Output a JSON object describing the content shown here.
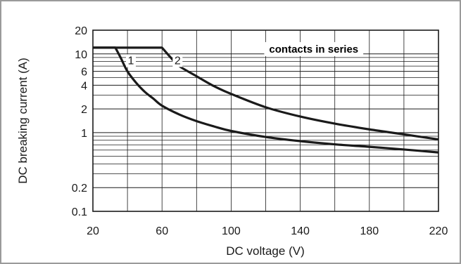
{
  "chart_data": {
    "type": "line",
    "title": "",
    "xlabel": "DC voltage (V)",
    "ylabel": "DC breaking current (A)",
    "x_scale": "linear",
    "y_scale": "log",
    "xlim": [
      20,
      220
    ],
    "ylim": [
      0.1,
      20
    ],
    "x_ticks": [
      20,
      60,
      100,
      140,
      180,
      220
    ],
    "x_tick_labels": [
      "20",
      "60",
      "100",
      "140",
      "180",
      "220"
    ],
    "y_ticks": [
      0.1,
      0.2,
      1,
      2,
      4,
      6,
      10,
      20
    ],
    "y_tick_labels": [
      "0.1",
      "0.2",
      "1",
      "2",
      "4",
      "6",
      "10",
      "20"
    ],
    "x_minor_step": 20,
    "y_minor_ticks": [
      0.3,
      0.4,
      0.5,
      0.6,
      0.7,
      0.8,
      0.9,
      3,
      5,
      7,
      8,
      9
    ],
    "grid": true,
    "series": [
      {
        "name": "1",
        "x": [
          20,
          33,
          36,
          40,
          45,
          50,
          55,
          60,
          70,
          80,
          90,
          100,
          120,
          140,
          160,
          180,
          200,
          220
        ],
        "y": [
          12,
          12,
          9,
          6,
          4.3,
          3.3,
          2.7,
          2.2,
          1.7,
          1.4,
          1.2,
          1.05,
          0.88,
          0.78,
          0.71,
          0.66,
          0.61,
          0.56
        ]
      },
      {
        "name": "2",
        "x": [
          20,
          60,
          65,
          70,
          80,
          90,
          100,
          120,
          140,
          160,
          180,
          200,
          220
        ],
        "y": [
          12,
          12,
          9,
          7,
          5.2,
          3.9,
          3.1,
          2.1,
          1.6,
          1.3,
          1.1,
          0.95,
          0.82
        ]
      }
    ],
    "annotations": [
      {
        "text": "1",
        "x": 42,
        "y": 8.2
      },
      {
        "text": "2",
        "x": 69,
        "y": 8.2
      },
      {
        "text": "contacts in series",
        "x": 122,
        "y": 11.5
      }
    ]
  }
}
